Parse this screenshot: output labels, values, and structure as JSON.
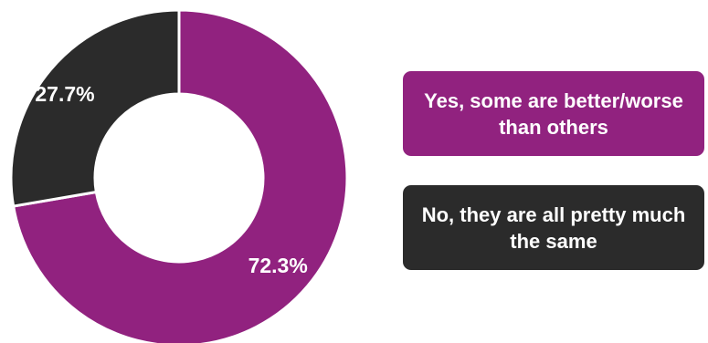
{
  "colors": {
    "yes": "#91227F",
    "no": "#2B2B2B"
  },
  "chart_data": {
    "type": "pie",
    "title": "",
    "hole": "donut",
    "labels": [
      "Yes, some are better/worse than others",
      "No, they are all pretty much the same"
    ],
    "values": [
      72.3,
      27.7
    ],
    "value_labels": [
      "72.3%",
      "27.7%"
    ],
    "colors": [
      "#91227F",
      "#2B2B2B"
    ],
    "legend_placement": "right"
  },
  "legend": {
    "yes_label": "Yes, some are better/worse than others",
    "no_label": "No, they are all pretty much the same"
  }
}
